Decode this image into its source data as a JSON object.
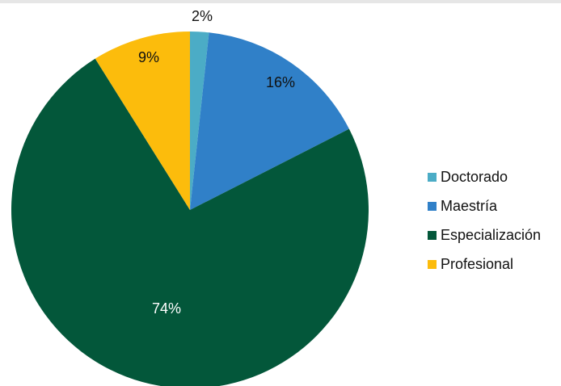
{
  "chart_data": {
    "type": "pie",
    "title": "",
    "start_angle_deg": 0,
    "direction": "clockwise",
    "slices": [
      {
        "label": "Doctorado",
        "value": 1.7,
        "display": "2%",
        "color": "#4bacc6",
        "label_color": "#111111"
      },
      {
        "label": "Maestría",
        "value": 15.8,
        "display": "16%",
        "color": "#3080c8",
        "label_color": "#111111"
      },
      {
        "label": "Especialización",
        "value": 73.6,
        "display": "74%",
        "color": "#03573a",
        "label_color": "#ffffff"
      },
      {
        "label": "Profesional",
        "value": 8.9,
        "display": "9%",
        "color": "#fcbc0c",
        "label_color": "#111111"
      }
    ],
    "legend": {
      "placement": "right",
      "entries": [
        "Doctorado",
        "Maestría",
        "Especialización",
        "Profesional"
      ]
    }
  }
}
